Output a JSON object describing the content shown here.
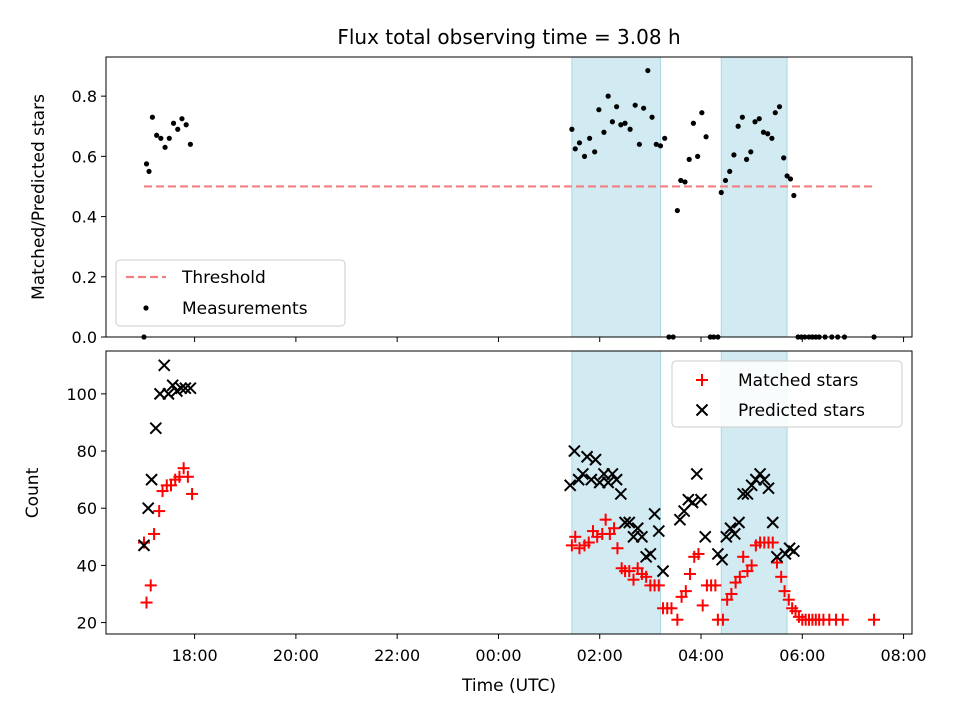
{
  "figure_title": "Flux total observing time = 3.08 h",
  "colors": {
    "threshold": "#f08080",
    "measurement": "#000000",
    "matched": "#ff0000",
    "predicted": "#000000",
    "shading": "#add8e6"
  },
  "chart_data": [
    {
      "type": "scatter",
      "subplot": "top",
      "ylabel": "Matched/Predicted stars",
      "xlabel": "",
      "ylim": [
        0,
        0.93
      ],
      "yticks": [
        0.0,
        0.2,
        0.4,
        0.6,
        0.8
      ],
      "ytick_labels": [
        "0.0",
        "0.2",
        "0.4",
        "0.6",
        "0.8"
      ],
      "legend_position": "lower-left",
      "shaded_intervals": [
        [
          "01:27",
          "03:12"
        ],
        [
          "04:24",
          "05:42"
        ]
      ],
      "series": [
        {
          "name": "Threshold",
          "kind": "dashed-line",
          "x": [
            "17:00",
            "07:25"
          ],
          "y": [
            0.5,
            0.5
          ]
        },
        {
          "name": "Measurements",
          "kind": "dots",
          "points": [
            [
              "17:00",
              0.0
            ],
            [
              "17:03",
              0.575
            ],
            [
              "17:06",
              0.55
            ],
            [
              "17:10",
              0.73
            ],
            [
              "17:15",
              0.67
            ],
            [
              "17:20",
              0.66
            ],
            [
              "17:25",
              0.63
            ],
            [
              "17:30",
              0.66
            ],
            [
              "17:35",
              0.71
            ],
            [
              "17:40",
              0.69
            ],
            [
              "17:45",
              0.725
            ],
            [
              "17:50",
              0.705
            ],
            [
              "17:55",
              0.64
            ],
            [
              "01:27",
              0.69
            ],
            [
              "01:31",
              0.625
            ],
            [
              "01:36",
              0.645
            ],
            [
              "01:42",
              0.6
            ],
            [
              "01:48",
              0.66
            ],
            [
              "01:54",
              0.615
            ],
            [
              "01:59",
              0.755
            ],
            [
              "02:05",
              0.68
            ],
            [
              "02:10",
              0.8
            ],
            [
              "02:15",
              0.715
            ],
            [
              "02:20",
              0.765
            ],
            [
              "02:25",
              0.705
            ],
            [
              "02:30",
              0.71
            ],
            [
              "02:36",
              0.69
            ],
            [
              "02:42",
              0.77
            ],
            [
              "02:47",
              0.64
            ],
            [
              "02:52",
              0.76
            ],
            [
              "02:57",
              0.885
            ],
            [
              "03:02",
              0.73
            ],
            [
              "03:07",
              0.64
            ],
            [
              "03:12",
              0.635
            ],
            [
              "03:17",
              0.66
            ],
            [
              "03:22",
              0.0
            ],
            [
              "03:27",
              0.0
            ],
            [
              "03:32",
              0.42
            ],
            [
              "03:36",
              0.52
            ],
            [
              "03:41",
              0.515
            ],
            [
              "03:46",
              0.59
            ],
            [
              "03:51",
              0.71
            ],
            [
              "03:56",
              0.6
            ],
            [
              "04:01",
              0.745
            ],
            [
              "04:06",
              0.665
            ],
            [
              "04:11",
              0.0
            ],
            [
              "04:15",
              0.0
            ],
            [
              "04:20",
              0.0
            ],
            [
              "04:24",
              0.48
            ],
            [
              "04:29",
              0.52
            ],
            [
              "04:34",
              0.55
            ],
            [
              "04:39",
              0.605
            ],
            [
              "04:44",
              0.7
            ],
            [
              "04:49",
              0.73
            ],
            [
              "04:54",
              0.59
            ],
            [
              "04:59",
              0.615
            ],
            [
              "05:04",
              0.715
            ],
            [
              "05:09",
              0.725
            ],
            [
              "05:14",
              0.68
            ],
            [
              "05:19",
              0.675
            ],
            [
              "05:24",
              0.66
            ],
            [
              "05:28",
              0.745
            ],
            [
              "05:33",
              0.765
            ],
            [
              "05:38",
              0.595
            ],
            [
              "05:42",
              0.535
            ],
            [
              "05:46",
              0.525
            ],
            [
              "05:50",
              0.47
            ],
            [
              "05:55",
              0.0
            ],
            [
              "05:59",
              0.0
            ],
            [
              "06:03",
              0.0
            ],
            [
              "06:08",
              0.0
            ],
            [
              "06:12",
              0.0
            ],
            [
              "06:16",
              0.0
            ],
            [
              "06:20",
              0.0
            ],
            [
              "06:27",
              0.0
            ],
            [
              "06:35",
              0.0
            ],
            [
              "06:42",
              0.0
            ],
            [
              "06:50",
              0.0
            ],
            [
              "07:25",
              0.0
            ]
          ]
        }
      ]
    },
    {
      "type": "scatter",
      "subplot": "bottom",
      "ylabel": "Count",
      "xlabel": "Time (UTC)",
      "ylim": [
        16,
        115
      ],
      "yticks": [
        20,
        40,
        60,
        80,
        100
      ],
      "ytick_labels": [
        "20",
        "40",
        "60",
        "80",
        "100"
      ],
      "xlim": [
        "16:15",
        "08:10"
      ],
      "xticks": [
        "18:00",
        "20:00",
        "22:00",
        "00:00",
        "02:00",
        "04:00",
        "06:00",
        "08:00"
      ],
      "xtick_labels": [
        "18:00",
        "20:00",
        "22:00",
        "00:00",
        "02:00",
        "04:00",
        "06:00",
        "08:00"
      ],
      "legend_position": "upper-right",
      "shaded_intervals": [
        [
          "01:27",
          "03:12"
        ],
        [
          "04:24",
          "05:42"
        ]
      ],
      "series": [
        {
          "name": "Matched stars",
          "marker": "plus",
          "points": [
            [
              "17:00",
              48
            ],
            [
              "17:03",
              27
            ],
            [
              "17:08",
              33
            ],
            [
              "17:12",
              51
            ],
            [
              "17:18",
              59
            ],
            [
              "17:22",
              66
            ],
            [
              "17:27",
              68
            ],
            [
              "17:32",
              68
            ],
            [
              "17:37",
              70
            ],
            [
              "17:42",
              71
            ],
            [
              "17:47",
              74
            ],
            [
              "17:52",
              71
            ],
            [
              "17:57",
              65
            ],
            [
              "01:27",
              47
            ],
            [
              "01:31",
              50
            ],
            [
              "01:36",
              46
            ],
            [
              "01:42",
              47
            ],
            [
              "01:47",
              48
            ],
            [
              "01:52",
              52
            ],
            [
              "01:57",
              50
            ],
            [
              "02:03",
              51
            ],
            [
              "02:07",
              56
            ],
            [
              "02:12",
              51
            ],
            [
              "02:17",
              53
            ],
            [
              "02:21",
              46
            ],
            [
              "02:26",
              39
            ],
            [
              "02:30",
              38
            ],
            [
              "02:35",
              38
            ],
            [
              "02:40",
              35
            ],
            [
              "02:45",
              39
            ],
            [
              "02:50",
              37
            ],
            [
              "02:55",
              36
            ],
            [
              "03:00",
              33
            ],
            [
              "03:05",
              33
            ],
            [
              "03:10",
              33
            ],
            [
              "03:15",
              25
            ],
            [
              "03:20",
              25
            ],
            [
              "03:25",
              25
            ],
            [
              "03:32",
              21
            ],
            [
              "03:37",
              29
            ],
            [
              "03:42",
              31
            ],
            [
              "03:47",
              37
            ],
            [
              "03:52",
              43
            ],
            [
              "03:57",
              44
            ],
            [
              "04:02",
              26
            ],
            [
              "04:07",
              33
            ],
            [
              "04:12",
              33
            ],
            [
              "04:17",
              33
            ],
            [
              "04:20",
              21
            ],
            [
              "04:26",
              21
            ],
            [
              "04:31",
              28
            ],
            [
              "04:36",
              30
            ],
            [
              "04:41",
              34
            ],
            [
              "04:46",
              36
            ],
            [
              "04:50",
              43
            ],
            [
              "04:55",
              38
            ],
            [
              "05:00",
              40
            ],
            [
              "05:05",
              47
            ],
            [
              "05:10",
              48
            ],
            [
              "05:15",
              48
            ],
            [
              "05:20",
              48
            ],
            [
              "05:25",
              48
            ],
            [
              "05:30",
              41
            ],
            [
              "05:35",
              36
            ],
            [
              "05:39",
              31
            ],
            [
              "05:44",
              28
            ],
            [
              "05:48",
              25
            ],
            [
              "05:52",
              24
            ],
            [
              "05:56",
              22
            ],
            [
              "06:00",
              21
            ],
            [
              "06:04",
              21
            ],
            [
              "06:08",
              21
            ],
            [
              "06:12",
              21
            ],
            [
              "06:16",
              21
            ],
            [
              "06:20",
              21
            ],
            [
              "06:25",
              21
            ],
            [
              "06:32",
              21
            ],
            [
              "06:40",
              21
            ],
            [
              "06:48",
              21
            ],
            [
              "07:25",
              21
            ]
          ]
        },
        {
          "name": "Predicted stars",
          "marker": "x",
          "points": [
            [
              "17:00",
              47
            ],
            [
              "17:05",
              60
            ],
            [
              "17:09",
              70
            ],
            [
              "17:14",
              88
            ],
            [
              "17:19",
              100
            ],
            [
              "17:24",
              110
            ],
            [
              "17:29",
              100
            ],
            [
              "17:34",
              103
            ],
            [
              "17:39",
              101
            ],
            [
              "17:44",
              102
            ],
            [
              "17:49",
              102
            ],
            [
              "17:55",
              102
            ],
            [
              "01:25",
              68
            ],
            [
              "01:30",
              80
            ],
            [
              "01:35",
              70
            ],
            [
              "01:40",
              72
            ],
            [
              "01:45",
              78
            ],
            [
              "01:50",
              70
            ],
            [
              "01:55",
              77
            ],
            [
              "02:00",
              69
            ],
            [
              "02:05",
              72
            ],
            [
              "02:10",
              69
            ],
            [
              "02:15",
              72
            ],
            [
              "02:20",
              70
            ],
            [
              "02:25",
              65
            ],
            [
              "02:30",
              55
            ],
            [
              "02:35",
              55
            ],
            [
              "02:40",
              50
            ],
            [
              "02:45",
              53
            ],
            [
              "02:50",
              50
            ],
            [
              "02:55",
              43
            ],
            [
              "03:00",
              44
            ],
            [
              "03:05",
              58
            ],
            [
              "03:10",
              52
            ],
            [
              "03:15",
              38
            ],
            [
              "03:35",
              56
            ],
            [
              "03:40",
              59
            ],
            [
              "03:45",
              63
            ],
            [
              "03:50",
              62
            ],
            [
              "03:55",
              72
            ],
            [
              "04:00",
              63
            ],
            [
              "04:05",
              50
            ],
            [
              "04:20",
              44
            ],
            [
              "04:25",
              42
            ],
            [
              "04:30",
              50
            ],
            [
              "04:35",
              53
            ],
            [
              "04:40",
              51
            ],
            [
              "04:45",
              55
            ],
            [
              "04:50",
              65
            ],
            [
              "04:55",
              65
            ],
            [
              "05:00",
              68
            ],
            [
              "05:05",
              70
            ],
            [
              "05:10",
              72
            ],
            [
              "05:15",
              70
            ],
            [
              "05:20",
              67
            ],
            [
              "05:25",
              55
            ],
            [
              "05:30",
              43
            ],
            [
              "05:40",
              44
            ],
            [
              "05:45",
              46
            ],
            [
              "05:50",
              45
            ]
          ]
        }
      ]
    }
  ]
}
